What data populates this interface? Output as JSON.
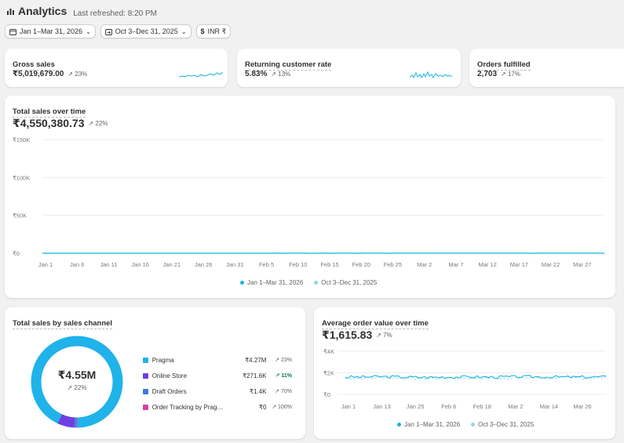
{
  "header": {
    "title": "Analytics",
    "refreshed": "Last refreshed: 8:20 PM"
  },
  "filters": [
    {
      "label": "Jan 1–Mar 31, 2026",
      "icon": "calendar-icon"
    },
    {
      "label": "Oct 3–Dec 31, 2025",
      "icon": "calendar-compare-icon"
    },
    {
      "label": "INR ₹",
      "icon": "currency-icon"
    }
  ],
  "kpis": [
    {
      "title": "Gross sales",
      "value": "₹5,019,679.00",
      "delta": "↗ 23%"
    },
    {
      "title": "Returning customer rate",
      "value": "5.83%",
      "delta": "↗ 13%"
    },
    {
      "title": "Orders fulfilled",
      "value": "2,703",
      "delta": "↗ 17%"
    }
  ],
  "total_sales": {
    "title": "Total sales over time",
    "value": "₹4,550,380.73",
    "delta": "↗ 22%",
    "y_ticks": [
      "₹150K",
      "₹100K",
      "₹50K",
      "₹0"
    ],
    "x_ticks": [
      "Jan 1",
      "Jan 6",
      "Jan 11",
      "Jan 16",
      "Jan 21",
      "Jan 26",
      "Jan 31",
      "Feb 5",
      "Feb 10",
      "Feb 15",
      "Feb 20",
      "Feb 25",
      "Mar 2",
      "Mar 7",
      "Mar 12",
      "Mar 17",
      "Mar 22",
      "Mar 27"
    ],
    "legend": [
      "Jan 1–Mar 31, 2026",
      "Oct 3–Dec 31, 2025"
    ]
  },
  "channels": {
    "title": "Total sales by sales channel",
    "total": "₹4.55M",
    "delta": "↗ 22%",
    "rows": [
      {
        "name": "Pragma",
        "value": "₹4.27M",
        "delta": "↗ 23%",
        "color": "#1fb3ea"
      },
      {
        "name": "Online Store",
        "value": "₹271.6K",
        "delta": "↗ 11%",
        "color": "#6f3ee3"
      },
      {
        "name": "Draft Orders",
        "value": "₹1.4K",
        "delta": "↗ 70%",
        "color": "#3f7be0"
      },
      {
        "name": "Order Tracking by Prag…",
        "value": "₹0",
        "delta": "↗ 100%",
        "color": "#d43fa6"
      }
    ]
  },
  "aov": {
    "title": "Average order value over time",
    "value": "₹1,615.83",
    "delta": "↗ 7%",
    "y_ticks": [
      "₹4K",
      "₹2K",
      "₹0"
    ],
    "x_ticks": [
      "Jan 1",
      "Jan 13",
      "Jan 25",
      "Feb 6",
      "Feb 18",
      "Mar 2",
      "Mar 14",
      "Mar 26"
    ],
    "legend": [
      "Jan 1–Mar 31, 2026",
      "Oct 3–Dec 31, 2025"
    ]
  },
  "colors": {
    "current": "#13b5e0",
    "previous": "#8fd4ea",
    "online_store": "#6f3ee3"
  },
  "chart_data": [
    {
      "type": "line",
      "title": "Total sales over time",
      "ylim": [
        0,
        150000
      ],
      "x": [
        "Jan 1",
        "Jan 2",
        "Jan 3",
        "Jan 4",
        "Jan 5",
        "Jan 6",
        "Jan 7",
        "Jan 8",
        "Jan 9",
        "Jan 10",
        "Jan 11",
        "Jan 12",
        "Jan 13",
        "Jan 14",
        "Jan 15",
        "Jan 16",
        "Jan 17",
        "Jan 18",
        "Jan 19",
        "Jan 20",
        "Jan 21",
        "Jan 22",
        "Jan 23",
        "Jan 24",
        "Jan 25",
        "Jan 26",
        "Jan 27",
        "Jan 28",
        "Jan 29",
        "Jan 30",
        "Jan 31",
        "Feb 1",
        "Feb 2",
        "Feb 3",
        "Feb 4",
        "Feb 5",
        "Feb 6",
        "Feb 7",
        "Feb 8",
        "Feb 9",
        "Feb 10",
        "Feb 11",
        "Feb 12",
        "Feb 13",
        "Feb 14",
        "Feb 15",
        "Feb 16",
        "Feb 17",
        "Feb 18",
        "Feb 19",
        "Feb 20",
        "Feb 21",
        "Feb 22",
        "Feb 23",
        "Feb 24",
        "Feb 25",
        "Feb 26",
        "Feb 27",
        "Feb 28",
        "Mar 1",
        "Mar 2",
        "Mar 3",
        "Mar 4",
        "Mar 5",
        "Mar 6",
        "Mar 7",
        "Mar 8",
        "Mar 9",
        "Mar 10",
        "Mar 11",
        "Mar 12",
        "Mar 13",
        "Mar 14",
        "Mar 15",
        "Mar 16",
        "Mar 17",
        "Mar 18",
        "Mar 19",
        "Mar 20",
        "Mar 21",
        "Mar 22",
        "Mar 23",
        "Mar 24",
        "Mar 25",
        "Mar 26",
        "Mar 27",
        "Mar 28",
        "Mar 29",
        "Mar 30",
        "Mar 31"
      ],
      "series": [
        {
          "name": "Jan 1–Mar 31, 2026",
          "values": [
            40,
            28,
            38,
            22,
            30,
            35,
            25,
            30,
            38,
            22,
            28,
            36,
            20,
            25,
            30,
            36,
            22,
            18,
            30,
            35,
            24,
            32,
            28,
            20,
            34,
            26,
            22,
            30,
            28,
            36,
            45,
            40,
            38,
            44,
            42,
            48,
            40,
            58,
            46,
            55,
            60,
            52,
            48,
            50,
            45,
            55,
            50,
            70,
            60,
            58,
            45,
            80,
            55,
            60,
            65,
            50,
            75,
            70,
            85,
            68,
            72,
            70,
            60,
            90,
            70,
            85,
            65,
            55,
            70,
            88,
            60,
            95,
            80,
            70,
            85,
            65,
            75,
            60,
            50,
            70,
            85,
            65,
            75,
            90,
            60,
            70,
            95,
            85,
            55,
            70
          ]
        },
        {
          "name": "Oct 3–Dec 31, 2025",
          "values": [
            65,
            90,
            70,
            110,
            80,
            132,
            95,
            85,
            120,
            88,
            100,
            78,
            110,
            92,
            85,
            115,
            100,
            90,
            80,
            120,
            110,
            128,
            105,
            90,
            82,
            100,
            95,
            72,
            98,
            85,
            90,
            70,
            80,
            60,
            85,
            65,
            55,
            72,
            60,
            55,
            68,
            50,
            58,
            45,
            55,
            42,
            60,
            70,
            48,
            55,
            62,
            45,
            58,
            50,
            65,
            48,
            55,
            50,
            70,
            62,
            58,
            55,
            50,
            60,
            72,
            55,
            65,
            50,
            62,
            58,
            70,
            52,
            48,
            60,
            65,
            55,
            60,
            50,
            42,
            65,
            70,
            55,
            60,
            48,
            62,
            50,
            58,
            35,
            45,
            30
          ]
        }
      ]
    },
    {
      "type": "pie",
      "title": "Total sales by sales channel",
      "categories": [
        "Pragma",
        "Online Store",
        "Draft Orders",
        "Order Tracking by Prag…"
      ],
      "values": [
        4270000,
        271600,
        1400,
        0
      ]
    },
    {
      "type": "line",
      "title": "Average order value over time",
      "ylim": [
        0,
        4000
      ],
      "x": [
        "Jan 1",
        "Jan 13",
        "Jan 25",
        "Feb 6",
        "Feb 18",
        "Mar 2",
        "Mar 14",
        "Mar 26"
      ],
      "series": [
        {
          "name": "Jan 1–Mar 31, 2026",
          "values": [
            1600,
            1650,
            1580,
            1620,
            1610,
            1640,
            1600,
            1620
          ]
        },
        {
          "name": "Oct 3–Dec 31, 2025",
          "values": [
            1500,
            1550,
            1480,
            1520,
            1510,
            1560,
            1540,
            1530
          ]
        }
      ]
    }
  ]
}
